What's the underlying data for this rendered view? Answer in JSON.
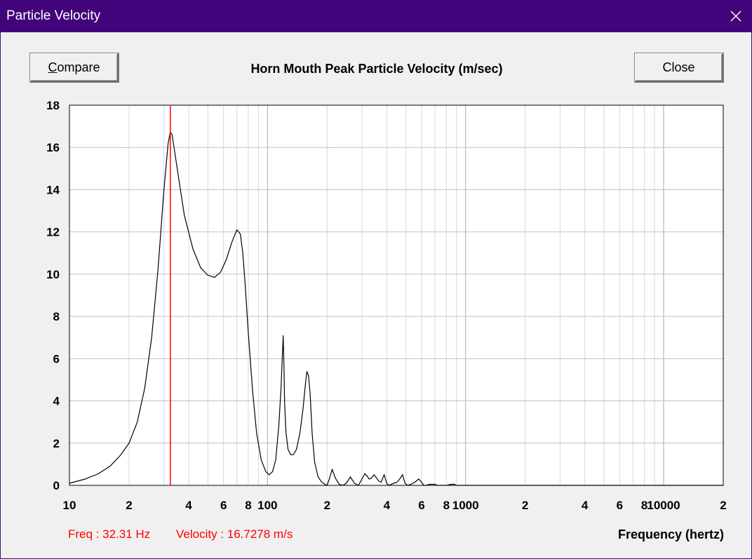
{
  "window": {
    "title": "Particle Velocity",
    "titlebar_color": "#43037a",
    "close_icon": "close-icon"
  },
  "toolbar": {
    "compare_label": "Compare",
    "compare_mnemonic": "C",
    "compare_rest": "ompare",
    "close_label": "Close"
  },
  "readout": {
    "freq": "Freq : 32.31 Hz",
    "velocity": "Velocity : 16.7278 m/s",
    "color": "#ff0000"
  },
  "chart_data": {
    "type": "line",
    "title": "Horn Mouth Peak Particle Velocity (m/sec)",
    "xlabel": "Frequency (hertz)",
    "ylabel": "",
    "xscale": "log",
    "xlim": [
      10,
      20000
    ],
    "ylim": [
      0,
      18
    ],
    "grid": true,
    "x_tick_labels": [
      {
        "x": 10,
        "label": "10"
      },
      {
        "x": 20,
        "label": "2"
      },
      {
        "x": 40,
        "label": "4"
      },
      {
        "x": 60,
        "label": "6"
      },
      {
        "x": 80,
        "label": "8"
      },
      {
        "x": 100,
        "label": "100"
      },
      {
        "x": 200,
        "label": "2"
      },
      {
        "x": 400,
        "label": "4"
      },
      {
        "x": 600,
        "label": "6"
      },
      {
        "x": 800,
        "label": "8"
      },
      {
        "x": 1000,
        "label": "1000"
      },
      {
        "x": 2000,
        "label": "2"
      },
      {
        "x": 4000,
        "label": "4"
      },
      {
        "x": 6000,
        "label": "6"
      },
      {
        "x": 8000,
        "label": "8"
      },
      {
        "x": 10000,
        "label": "10000"
      },
      {
        "x": 20000,
        "label": "2"
      }
    ],
    "y_ticks": [
      0,
      2,
      4,
      6,
      8,
      10,
      12,
      14,
      16,
      18
    ],
    "line_color": "#000000",
    "marker": {
      "x": 32.31,
      "color": "#ff0000"
    },
    "series": [
      {
        "x": [
          10,
          12,
          14,
          16,
          18,
          20,
          22,
          24,
          26,
          28,
          30,
          31.5,
          32.3,
          33,
          35,
          38,
          42,
          46,
          50,
          54,
          58,
          62,
          66,
          70,
          73,
          75,
          77,
          80,
          84,
          88,
          93,
          98,
          102,
          106,
          110,
          114,
          117,
          119,
          120,
          121,
          122,
          124,
          127,
          131,
          135,
          140,
          146,
          151,
          155,
          158,
          161,
          164,
          168,
          173,
          180,
          188,
          195,
          200,
          205,
          212,
          220,
          230,
          240,
          250,
          262,
          275,
          288,
          300,
          310,
          318,
          326,
          335,
          345,
          355,
          365,
          375,
          388,
          400,
          410,
          420,
          435,
          450,
          465,
          480,
          495,
          510,
          530,
          555,
          580,
          600,
          615,
          630,
          660,
          700,
          720,
          735,
          760,
          800,
          850,
          880,
          895,
          910,
          950,
          1000,
          1100,
          1300,
          1600,
          2000,
          2500,
          3000,
          4000,
          5000,
          7000,
          10000,
          14000,
          20000
        ],
        "y": [
          0.1,
          0.3,
          0.55,
          0.9,
          1.4,
          2.0,
          3.0,
          4.6,
          7.0,
          10.2,
          14.0,
          16.2,
          16.73,
          16.6,
          15.0,
          12.8,
          11.2,
          10.3,
          9.95,
          9.85,
          10.1,
          10.7,
          11.5,
          12.1,
          11.9,
          11.0,
          9.6,
          7.2,
          4.5,
          2.5,
          1.2,
          0.65,
          0.5,
          0.65,
          1.2,
          2.8,
          4.6,
          6.3,
          7.1,
          5.8,
          3.9,
          2.5,
          1.7,
          1.45,
          1.45,
          1.7,
          2.5,
          3.6,
          4.7,
          5.4,
          5.2,
          4.4,
          2.5,
          1.1,
          0.4,
          0.15,
          0.05,
          0.0,
          0.3,
          0.75,
          0.35,
          0.05,
          0.0,
          0.1,
          0.4,
          0.1,
          0.0,
          0.3,
          0.55,
          0.45,
          0.3,
          0.35,
          0.5,
          0.35,
          0.2,
          0.15,
          0.5,
          0.1,
          0.0,
          0.05,
          0.1,
          0.15,
          0.3,
          0.5,
          0.1,
          0.0,
          0.05,
          0.15,
          0.3,
          0.15,
          0.0,
          0.0,
          0.05,
          0.05,
          0.0,
          0.0,
          0.0,
          0.0,
          0.05,
          0.05,
          0.0,
          0.0,
          0.0,
          0.0,
          0.0,
          0.0,
          0.0,
          0.0,
          0.0,
          0.0,
          0.0,
          0.0,
          0.0,
          0.0,
          0.0,
          0.0
        ]
      }
    ]
  }
}
